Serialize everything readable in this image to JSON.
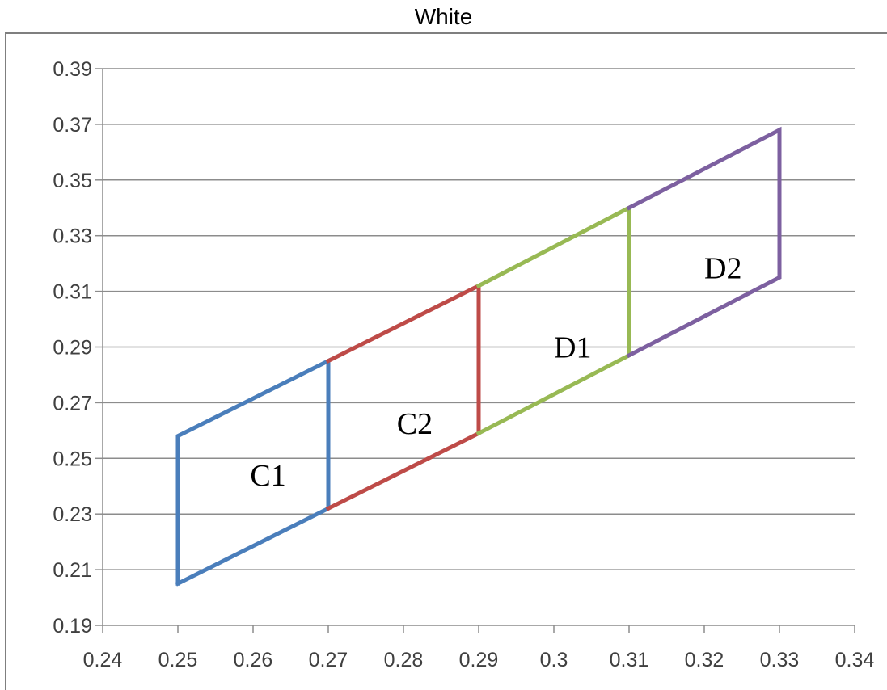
{
  "chart_data": {
    "type": "line",
    "title": "White",
    "xlabel": "",
    "ylabel": "",
    "xlim": [
      0.24,
      0.34
    ],
    "ylim": [
      0.19,
      0.39
    ],
    "xticks": [
      0.24,
      0.25,
      0.26,
      0.27,
      0.28,
      0.29,
      0.3,
      0.31,
      0.32,
      0.33,
      0.34
    ],
    "xtick_labels": [
      "0.24",
      "0.25",
      "0.26",
      "0.27",
      "0.28",
      "0.29",
      "0.3",
      "0.31",
      "0.32",
      "0.33",
      "0.34"
    ],
    "yticks": [
      0.19,
      0.21,
      0.23,
      0.25,
      0.27,
      0.29,
      0.31,
      0.33,
      0.35,
      0.37,
      0.39
    ],
    "ytick_labels": [
      "0.19",
      "0.21",
      "0.23",
      "0.25",
      "0.27",
      "0.29",
      "0.31",
      "0.33",
      "0.35",
      "0.37",
      "0.39"
    ],
    "grid": "horizontal",
    "legend": "none",
    "series": [
      {
        "label": "C1",
        "color": "#4a7ebb",
        "x": [
          0.25,
          0.27,
          0.27,
          0.25,
          0.25
        ],
        "y": [
          0.205,
          0.232,
          0.285,
          0.258,
          0.205
        ],
        "label_pos": [
          0.262,
          0.244
        ]
      },
      {
        "label": "C2",
        "color": "#be4b48",
        "x": [
          0.27,
          0.29,
          0.29,
          0.27
        ],
        "y": [
          0.232,
          0.259,
          0.312,
          0.285
        ],
        "label_pos": [
          0.2815,
          0.2625
        ]
      },
      {
        "label": "D1",
        "color": "#98b954",
        "x": [
          0.29,
          0.31,
          0.31,
          0.29
        ],
        "y": [
          0.259,
          0.287,
          0.34,
          0.312
        ],
        "label_pos": [
          0.3025,
          0.29
        ]
      },
      {
        "label": "D2",
        "color": "#7d60a0",
        "x": [
          0.31,
          0.33,
          0.33,
          0.31
        ],
        "y": [
          0.287,
          0.315,
          0.368,
          0.34
        ],
        "label_pos": [
          0.3225,
          0.3185
        ]
      }
    ]
  }
}
